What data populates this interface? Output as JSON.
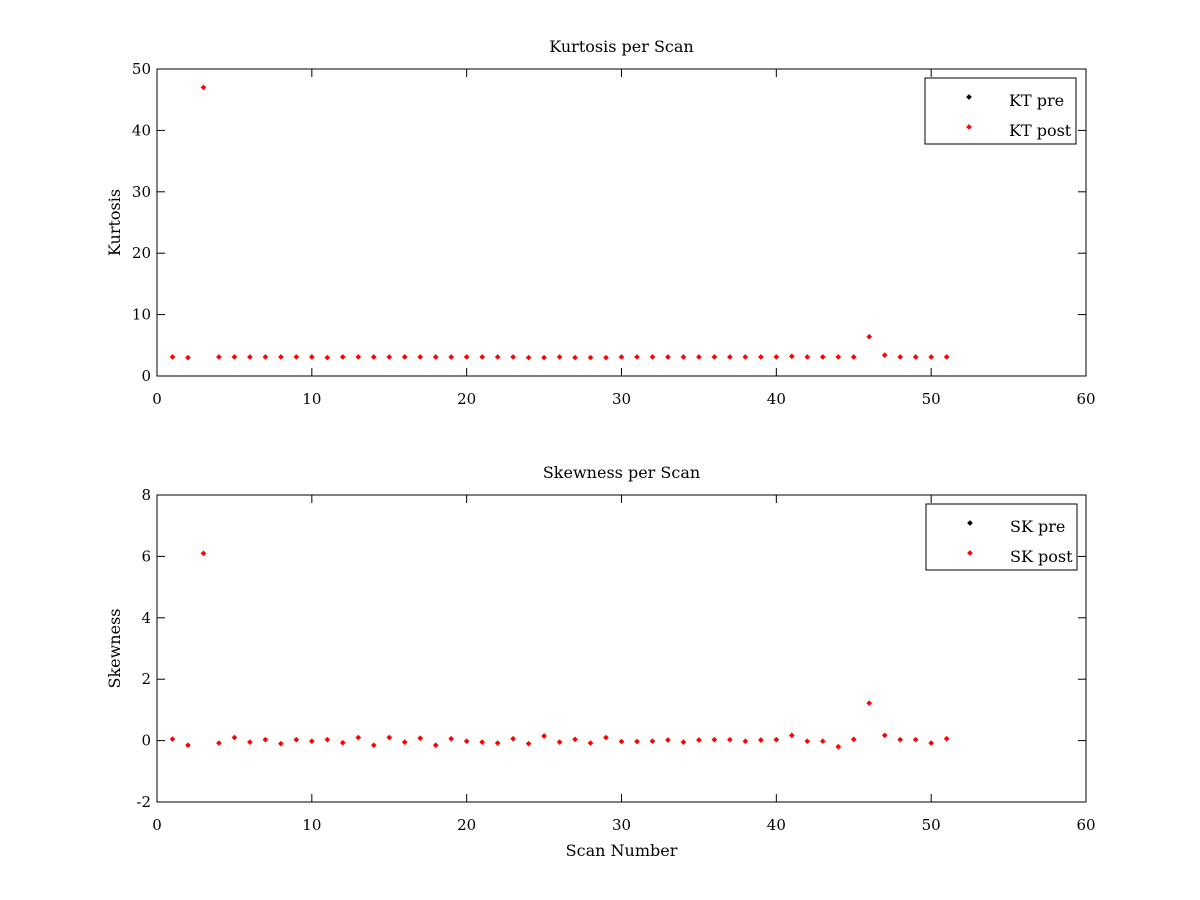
{
  "chart_data": [
    {
      "type": "scatter",
      "title": "Kurtosis per Scan",
      "xlabel": "",
      "ylabel": "Kurtosis",
      "xlim": [
        0,
        60
      ],
      "ylim": [
        0,
        50
      ],
      "xticks": [
        0,
        10,
        20,
        30,
        40,
        50,
        60
      ],
      "yticks": [
        0,
        10,
        20,
        30,
        40,
        50
      ],
      "grid": false,
      "legend_position": "top-right",
      "series": [
        {
          "name": "KT pre",
          "color": "#000000",
          "marker": "dot",
          "x": [],
          "y": []
        },
        {
          "name": "KT post",
          "color": "#ff0000",
          "marker": "dot",
          "x": [
            1,
            2,
            3,
            4,
            5,
            6,
            7,
            8,
            9,
            10,
            11,
            12,
            13,
            14,
            15,
            16,
            17,
            18,
            19,
            20,
            21,
            22,
            23,
            24,
            25,
            26,
            27,
            28,
            29,
            30,
            31,
            32,
            33,
            34,
            35,
            36,
            37,
            38,
            39,
            40,
            41,
            42,
            43,
            44,
            45,
            46,
            47,
            48,
            49,
            50,
            51
          ],
          "y": [
            3.1,
            3.0,
            47.0,
            3.1,
            3.1,
            3.1,
            3.1,
            3.1,
            3.1,
            3.1,
            3.0,
            3.1,
            3.1,
            3.1,
            3.1,
            3.1,
            3.1,
            3.1,
            3.1,
            3.1,
            3.1,
            3.1,
            3.1,
            3.0,
            3.0,
            3.1,
            3.0,
            3.0,
            3.0,
            3.1,
            3.1,
            3.1,
            3.1,
            3.1,
            3.1,
            3.1,
            3.1,
            3.1,
            3.1,
            3.1,
            3.2,
            3.1,
            3.1,
            3.1,
            3.1,
            6.4,
            3.4,
            3.1,
            3.1,
            3.1,
            3.1
          ]
        }
      ]
    },
    {
      "type": "scatter",
      "title": "Skewness per Scan",
      "xlabel": "Scan Number",
      "ylabel": "Skewness",
      "xlim": [
        0,
        60
      ],
      "ylim": [
        -2,
        8
      ],
      "xticks": [
        0,
        10,
        20,
        30,
        40,
        50,
        60
      ],
      "yticks": [
        -2,
        0,
        2,
        4,
        6,
        8
      ],
      "grid": false,
      "legend_position": "top-right",
      "series": [
        {
          "name": "SK pre",
          "color": "#000000",
          "marker": "dot",
          "x": [],
          "y": []
        },
        {
          "name": "SK post",
          "color": "#ff0000",
          "marker": "dot",
          "x": [
            1,
            2,
            3,
            4,
            5,
            6,
            7,
            8,
            9,
            10,
            11,
            12,
            13,
            14,
            15,
            16,
            17,
            18,
            19,
            20,
            21,
            22,
            23,
            24,
            25,
            26,
            27,
            28,
            29,
            30,
            31,
            32,
            33,
            34,
            35,
            36,
            37,
            38,
            39,
            40,
            41,
            42,
            43,
            44,
            45,
            46,
            47,
            48,
            49,
            50,
            51
          ],
          "y": [
            0.05,
            -0.15,
            6.1,
            -0.08,
            0.1,
            -0.05,
            0.03,
            -0.1,
            0.03,
            -0.02,
            0.03,
            -0.07,
            0.1,
            -0.15,
            0.1,
            -0.05,
            0.08,
            -0.15,
            0.06,
            -0.02,
            -0.05,
            -0.08,
            0.06,
            -0.1,
            0.15,
            -0.05,
            0.04,
            -0.08,
            0.1,
            -0.03,
            -0.03,
            -0.02,
            0.02,
            -0.05,
            0.02,
            0.03,
            0.03,
            -0.02,
            0.02,
            0.03,
            0.17,
            -0.02,
            -0.02,
            -0.2,
            0.04,
            1.22,
            0.17,
            0.03,
            0.03,
            -0.08,
            0.06
          ]
        }
      ]
    }
  ]
}
